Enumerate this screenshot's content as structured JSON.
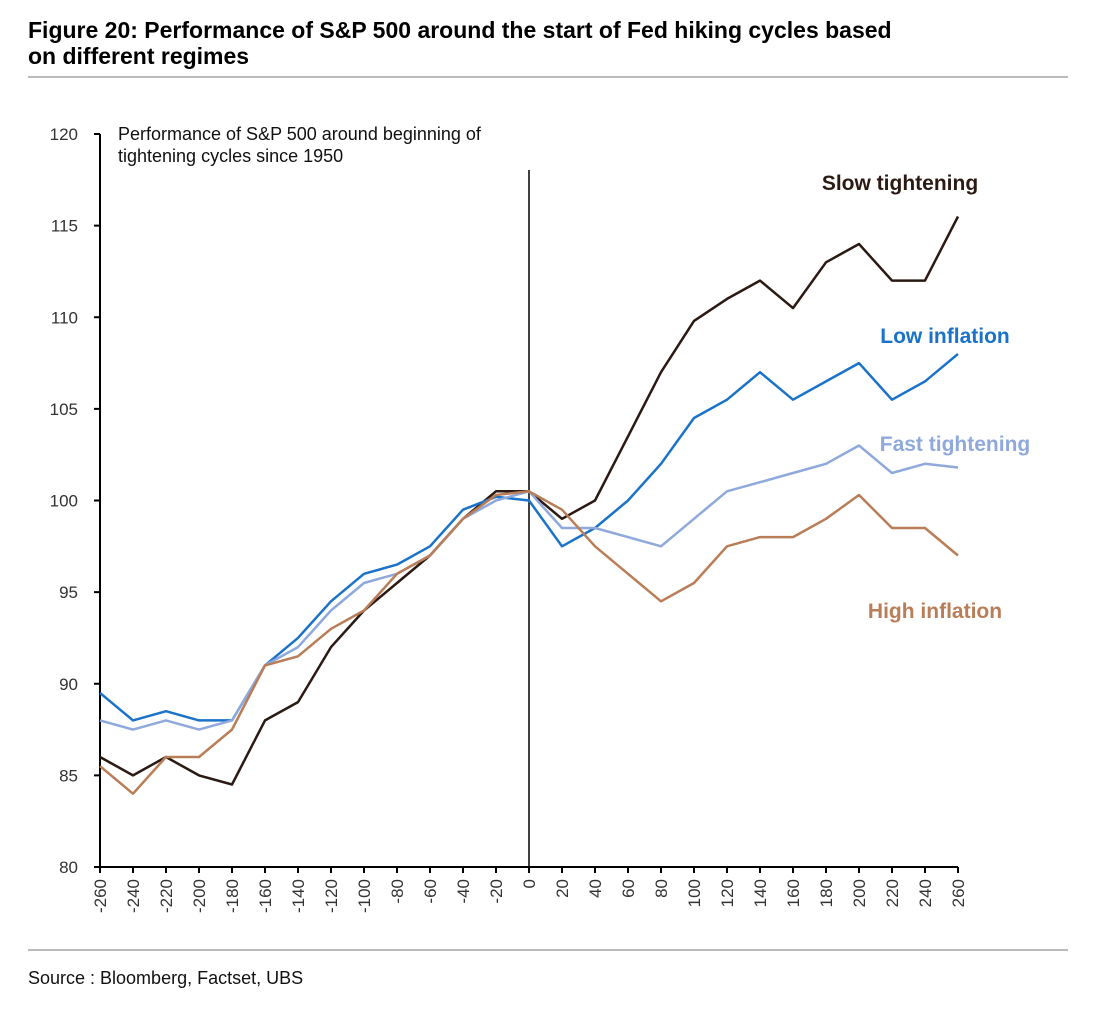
{
  "chart_data": {
    "type": "line",
    "title": "Figure 20: Performance of S&P 500 around the start of Fed hiking cycles based on different regimes",
    "subtitle": "Performance of S&P 500 around beginning of tightening cycles since 1950",
    "source": "Source : Bloomberg, Factset, UBS",
    "x": [
      -260,
      -240,
      -220,
      -200,
      -180,
      -160,
      -140,
      -120,
      -100,
      -80,
      -60,
      -40,
      -20,
      0,
      20,
      40,
      60,
      80,
      100,
      120,
      140,
      160,
      180,
      200,
      220,
      240,
      260
    ],
    "series": [
      {
        "name": "Slow tightening",
        "color": "#2b1a14",
        "values": [
          86,
          85,
          86,
          85,
          84.5,
          88,
          89,
          92,
          94,
          95.5,
          97,
          99,
          100.5,
          100.5,
          99,
          100,
          103.5,
          107,
          109.8,
          111,
          112,
          110.5,
          113,
          114,
          112,
          112,
          115.5
        ]
      },
      {
        "name": "Low inflation",
        "color": "#1a73c8",
        "values": [
          89.5,
          88,
          88.5,
          88,
          88,
          91,
          92.5,
          94.5,
          96,
          96.5,
          97.5,
          99.5,
          100.2,
          100,
          97.5,
          98.5,
          100,
          102,
          104.5,
          105.5,
          107,
          105.5,
          106.5,
          107.5,
          105.5,
          106.5,
          108
        ]
      },
      {
        "name": "Fast tightening",
        "color": "#8fa9dc",
        "values": [
          88,
          87.5,
          88,
          87.5,
          88,
          91,
          92,
          94,
          95.5,
          96,
          97,
          99,
          100,
          100.5,
          98.5,
          98.5,
          98,
          97.5,
          99,
          100.5,
          101,
          101.5,
          102,
          103,
          101.5,
          102,
          101.8
        ]
      },
      {
        "name": "High inflation",
        "color": "#b97d57",
        "values": [
          85.5,
          84,
          86,
          86,
          87.5,
          91,
          91.5,
          93,
          94,
          96,
          97,
          99,
          100.3,
          100.5,
          99.5,
          97.5,
          96,
          94.5,
          95.5,
          97.5,
          98,
          98,
          99,
          100.3,
          98.5,
          98.5,
          97
        ]
      }
    ],
    "vline": 0,
    "xlim": [
      -260,
      260
    ],
    "xticks": [
      -260,
      -240,
      -220,
      -200,
      -180,
      -160,
      -140,
      -120,
      -100,
      -80,
      -60,
      -40,
      -20,
      0,
      20,
      40,
      60,
      80,
      100,
      120,
      140,
      160,
      180,
      200,
      220,
      240,
      260
    ],
    "ylim": [
      80,
      120
    ],
    "yticks": [
      80,
      85,
      90,
      95,
      100,
      105,
      110,
      115,
      120
    ],
    "grid": false
  }
}
